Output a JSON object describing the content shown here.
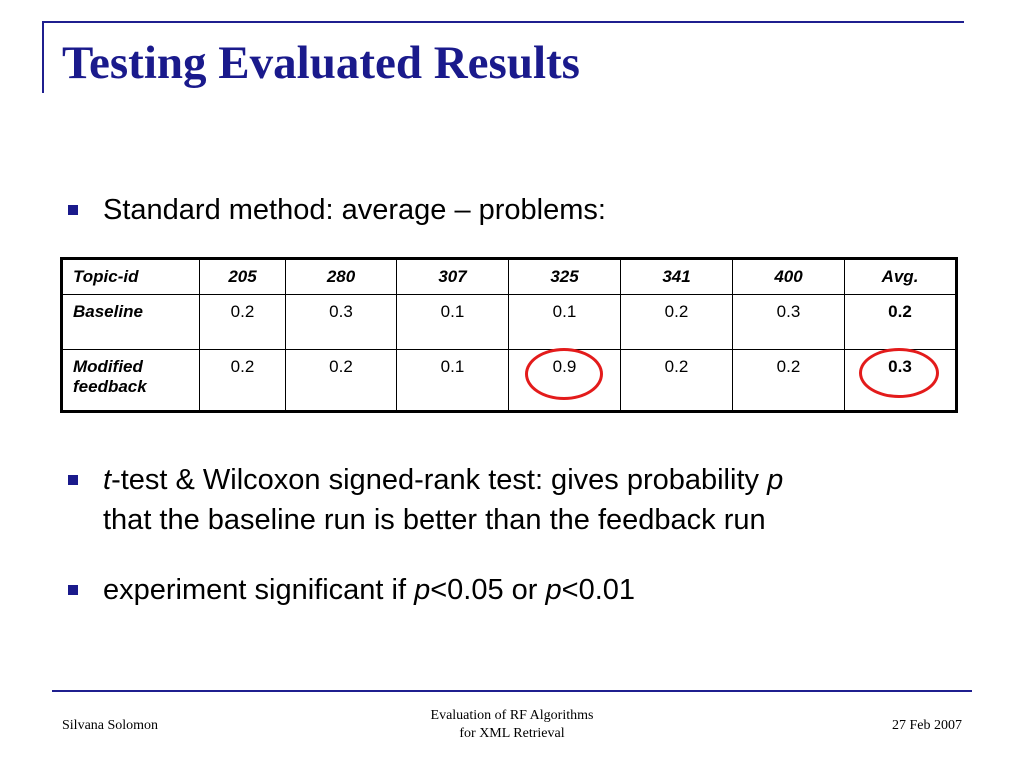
{
  "slide": {
    "title": "Testing Evaluated Results"
  },
  "bullets": {
    "b1": "Standard method: average – problems:",
    "b2_italic_t": "t",
    "b2_text1": "-test & Wilcoxon signed-rank test: gives probability ",
    "b2_italic_p": "p",
    "b2_line2": "that the baseline run is better than the feedback run",
    "b3_text1": "experiment significant if ",
    "b3_italic_p1": "p",
    "b3_text2": "<0.05 or ",
    "b3_italic_p2": "p",
    "b3_text3": "<0.01"
  },
  "table": {
    "headers": [
      "Topic-id",
      "205",
      "280",
      "307",
      "325",
      "341",
      "400",
      "Avg."
    ],
    "rows": [
      {
        "label": "Baseline",
        "values": [
          "0.2",
          "0.3",
          "0.1",
          "0.1",
          "0.2",
          "0.3"
        ],
        "avg": "0.2"
      },
      {
        "label_line1": "Modified",
        "label_line2": "feedback",
        "values": [
          "0.2",
          "0.2",
          "0.1",
          "0.9",
          "0.2",
          "0.2"
        ],
        "avg": "0.3"
      }
    ],
    "highlight_color": "#e31b1b"
  },
  "footer": {
    "author": "Silvana Solomon",
    "center_line1": "Evaluation of RF Algorithms",
    "center_line2": "for XML Retrieval",
    "date": "27 Feb 2007"
  },
  "colors": {
    "title": "#1a1a8c",
    "rule": "#1f1f8f",
    "bullet": "#1a1a8c",
    "circle": "#e31b1b"
  }
}
